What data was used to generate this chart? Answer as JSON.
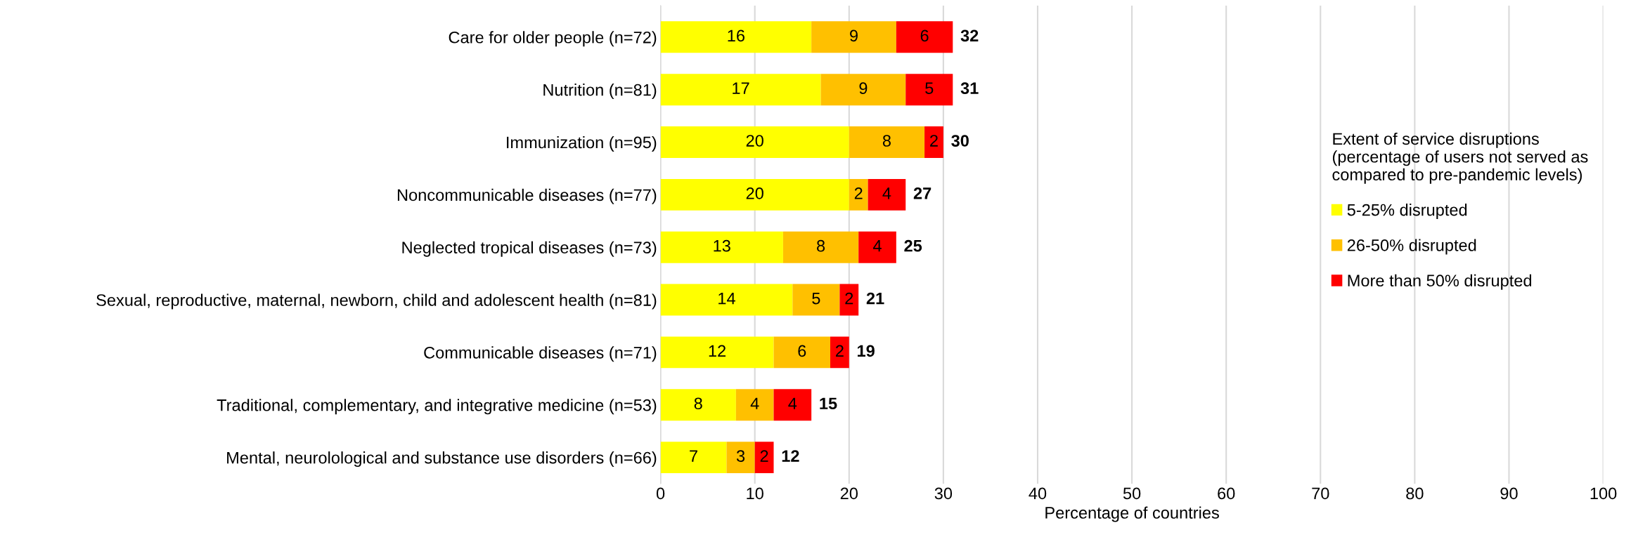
{
  "chart_data": {
    "type": "bar",
    "orientation": "horizontal",
    "stacked": true,
    "xlabel": "Percentage of countries",
    "categories": [
      "Care for older people (n=72)",
      "Nutrition (n=81)",
      "Immunization (n=95)",
      "Noncommunicable diseases (n=77)",
      "Neglected tropical diseases (n=73)",
      "Sexual, reproductive, maternal, newborn, child and adolescent health (n=81)",
      "Communicable diseases (n=71)",
      "Traditional, complementary, and integrative medicine (n=53)",
      "Mental, neurolological and substance use disorders (n=66)"
    ],
    "series": [
      {
        "name": "5-25% disrupted",
        "color": "#ffff00",
        "values": [
          16,
          17,
          20,
          20,
          13,
          14,
          12,
          8,
          7
        ]
      },
      {
        "name": "26-50% disrupted",
        "color": "#ffc000",
        "values": [
          9,
          9,
          8,
          2,
          8,
          5,
          6,
          4,
          3
        ]
      },
      {
        "name": "More than 50% disrupted",
        "color": "#ff0000",
        "values": [
          6,
          5,
          2,
          4,
          4,
          2,
          2,
          4,
          2
        ]
      }
    ],
    "totals": [
      "32",
      "31",
      "30",
      "27",
      "25",
      "21",
      "19",
      "15",
      "12"
    ],
    "data_labels": true,
    "xlim": [
      0,
      100
    ],
    "xticks": [
      0,
      10,
      20,
      30,
      40,
      50,
      60,
      70,
      80,
      90,
      100
    ],
    "grid": "x",
    "legend": "right",
    "legend_title": "Extent of service disruptions\n(percentage of users not served as\ncompared to pre-pandemic levels)"
  }
}
